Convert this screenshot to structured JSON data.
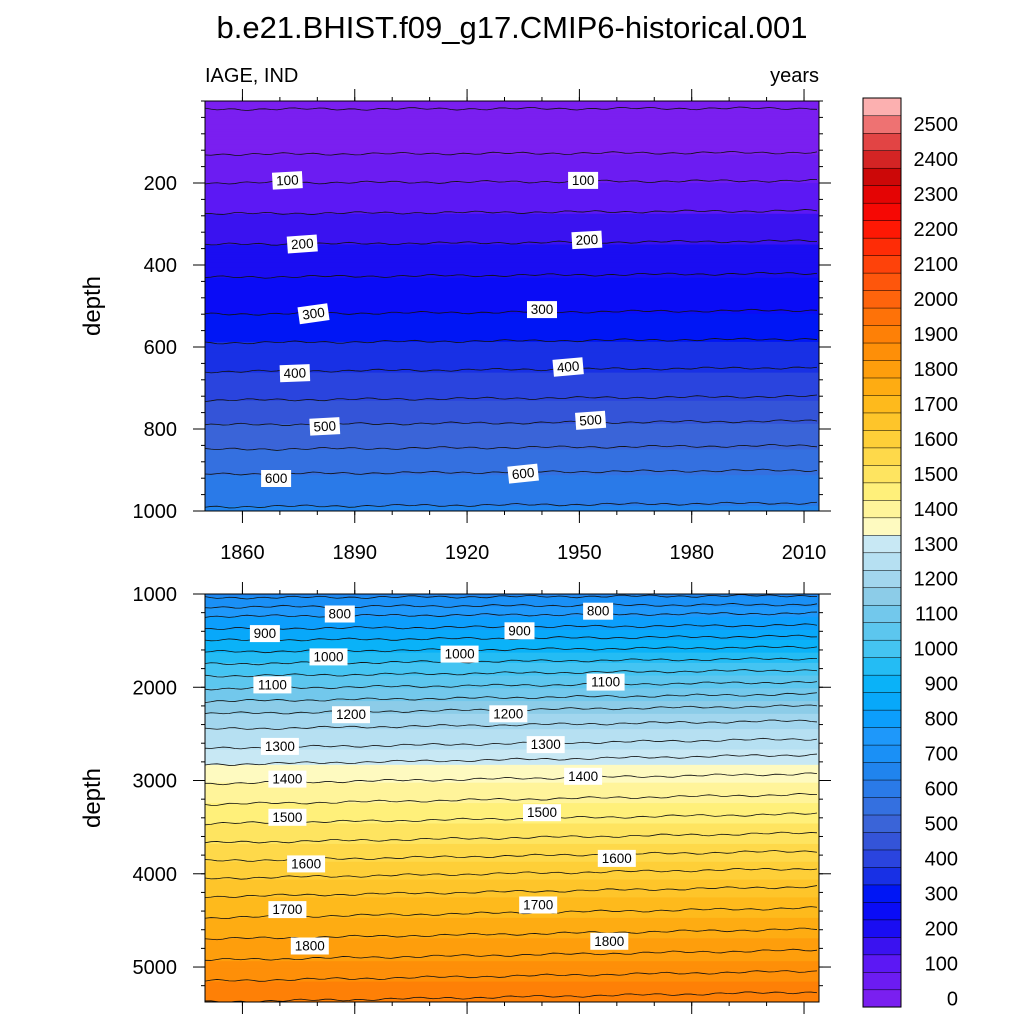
{
  "title": "b.e21.BHIST.f09_g17.CMIP6-historical.001",
  "variable_label": "IAGE, IND",
  "units_label": "years",
  "chart_data": [
    {
      "type": "heatmap",
      "name": "upper-panel",
      "x_range": [
        1850,
        2014
      ],
      "y_range": [
        0,
        1000
      ],
      "y_inverted": true,
      "ylabel": "depth",
      "xticks": [
        1860,
        1890,
        1920,
        1950,
        1980,
        2010
      ],
      "xtick_labels": [
        "1860",
        "1890",
        "1920",
        "1950",
        "1980",
        "2010"
      ],
      "yticks": [
        200,
        400,
        600,
        800,
        1000
      ],
      "ytick_labels": [
        "200",
        "400",
        "600",
        "800",
        "1000"
      ],
      "contour_interval": 50,
      "age_profile": [
        [
          0,
          0
        ],
        [
          20,
          0
        ],
        [
          130,
          50
        ],
        [
          200,
          100
        ],
        [
          275,
          150
        ],
        [
          350,
          200
        ],
        [
          430,
          250
        ],
        [
          520,
          300
        ],
        [
          590,
          350
        ],
        [
          660,
          400
        ],
        [
          730,
          450
        ],
        [
          790,
          500
        ],
        [
          850,
          550
        ],
        [
          910,
          600
        ],
        [
          990,
          650
        ],
        [
          1000,
          658
        ]
      ],
      "contour_labels": [
        {
          "text": "100",
          "year": 1872,
          "depth": 195,
          "angle": -3
        },
        {
          "text": "100",
          "year": 1951,
          "depth": 195,
          "angle": 0
        },
        {
          "text": "200",
          "year": 1876,
          "depth": 350,
          "angle": -4
        },
        {
          "text": "200",
          "year": 1952,
          "depth": 340,
          "angle": -3
        },
        {
          "text": "300",
          "year": 1879,
          "depth": 520,
          "angle": -8
        },
        {
          "text": "300",
          "year": 1940,
          "depth": 510,
          "angle": 0
        },
        {
          "text": "400",
          "year": 1874,
          "depth": 665,
          "angle": -2
        },
        {
          "text": "400",
          "year": 1947,
          "depth": 650,
          "angle": -5
        },
        {
          "text": "500",
          "year": 1882,
          "depth": 795,
          "angle": -3
        },
        {
          "text": "500",
          "year": 1953,
          "depth": 780,
          "angle": -4
        },
        {
          "text": "600",
          "year": 1869,
          "depth": 922,
          "angle": 0
        },
        {
          "text": "600",
          "year": 1935,
          "depth": 910,
          "angle": -6
        }
      ]
    },
    {
      "type": "heatmap",
      "name": "lower-panel",
      "x_range": [
        1850,
        2014
      ],
      "y_range": [
        1000,
        5375
      ],
      "y_inverted": true,
      "ylabel": "depth",
      "yticks": [
        1000,
        2000,
        3000,
        4000,
        5000
      ],
      "ytick_labels": [
        "1000",
        "2000",
        "3000",
        "4000",
        "5000"
      ],
      "contour_interval": 50,
      "age_profile": [
        [
          1000,
          680
        ],
        [
          1120,
          740
        ],
        [
          1240,
          800
        ],
        [
          1400,
          860
        ],
        [
          1620,
          950
        ],
        [
          1880,
          1050
        ],
        [
          2150,
          1150
        ],
        [
          2390,
          1240
        ],
        [
          2450,
          1250
        ],
        [
          2550,
          1270
        ],
        [
          2900,
          1370
        ],
        [
          3300,
          1460
        ],
        [
          3750,
          1570
        ],
        [
          4200,
          1690
        ],
        [
          4700,
          1800
        ],
        [
          5375,
          1950
        ]
      ],
      "contour_labels": [
        {
          "text": "800",
          "year": 1886,
          "depth": 1220,
          "angle": 0
        },
        {
          "text": "800",
          "year": 1955,
          "depth": 1190,
          "angle": 0
        },
        {
          "text": "900",
          "year": 1866,
          "depth": 1430,
          "angle": 0
        },
        {
          "text": "900",
          "year": 1934,
          "depth": 1400,
          "angle": 0
        },
        {
          "text": "1000",
          "year": 1883,
          "depth": 1680,
          "angle": 0
        },
        {
          "text": "1000",
          "year": 1918,
          "depth": 1650,
          "angle": 0
        },
        {
          "text": "1100",
          "year": 1868,
          "depth": 1980,
          "angle": 0
        },
        {
          "text": "1100",
          "year": 1957,
          "depth": 1950,
          "angle": 0
        },
        {
          "text": "1200",
          "year": 1889,
          "depth": 2300,
          "angle": 0
        },
        {
          "text": "1200",
          "year": 1931,
          "depth": 2290,
          "angle": 0
        },
        {
          "text": "1300",
          "year": 1870,
          "depth": 2640,
          "angle": 0
        },
        {
          "text": "1300",
          "year": 1941,
          "depth": 2620,
          "angle": 0
        },
        {
          "text": "1400",
          "year": 1872,
          "depth": 2990,
          "angle": 0
        },
        {
          "text": "1400",
          "year": 1951,
          "depth": 2960,
          "angle": 0
        },
        {
          "text": "1500",
          "year": 1872,
          "depth": 3400,
          "angle": 0
        },
        {
          "text": "1500",
          "year": 1940,
          "depth": 3350,
          "angle": 0
        },
        {
          "text": "1600",
          "year": 1877,
          "depth": 3900,
          "angle": 0
        },
        {
          "text": "1600",
          "year": 1960,
          "depth": 3840,
          "angle": 0
        },
        {
          "text": "1700",
          "year": 1872,
          "depth": 4390,
          "angle": 0
        },
        {
          "text": "1700",
          "year": 1939,
          "depth": 4340,
          "angle": 0
        },
        {
          "text": "1800",
          "year": 1878,
          "depth": 4780,
          "angle": 0
        },
        {
          "text": "1800",
          "year": 1958,
          "depth": 4730,
          "angle": 0
        }
      ]
    }
  ],
  "colorbar": {
    "min": 0,
    "max": 2550,
    "step": 50,
    "tick_labels": [
      "0",
      "100",
      "200",
      "300",
      "400",
      "500",
      "600",
      "700",
      "800",
      "900",
      "1000",
      "1100",
      "1200",
      "1300",
      "1400",
      "1500",
      "1600",
      "1700",
      "1800",
      "1900",
      "2000",
      "2100",
      "2200",
      "2300",
      "2400",
      "2500"
    ],
    "colors": [
      "#7a1ff0",
      "#6c1cf2",
      "#5c18f4",
      "#3a12f0",
      "#1a0df2",
      "#0a0cf6",
      "#0016f5",
      "#1830e5",
      "#2a44de",
      "#3454d8",
      "#3a64d8",
      "#3470e0",
      "#2a7ae8",
      "#2084ee",
      "#1a90f6",
      "#1e98fa",
      "#0c9efc",
      "#08a8fa",
      "#0ab2f8",
      "#24bcf4",
      "#44c4f2",
      "#5cc6ee",
      "#72c8ec",
      "#8ccce8",
      "#a2d6ee",
      "#b6e0f2",
      "#c8e8f4",
      "#fefac0",
      "#fff49a",
      "#fff07a",
      "#fee460",
      "#fed94a",
      "#fecf38",
      "#fec52a",
      "#feba1c",
      "#feac12",
      "#fe9e0c",
      "#fe8f08",
      "#fe8006",
      "#fe7208",
      "#fe640c",
      "#fe560c",
      "#fe420a",
      "#fe2c06",
      "#fe1804",
      "#f60804",
      "#e40404",
      "#cc0808",
      "#d42424",
      "#e24444",
      "#ee7272",
      "#fcb0b0"
    ]
  }
}
